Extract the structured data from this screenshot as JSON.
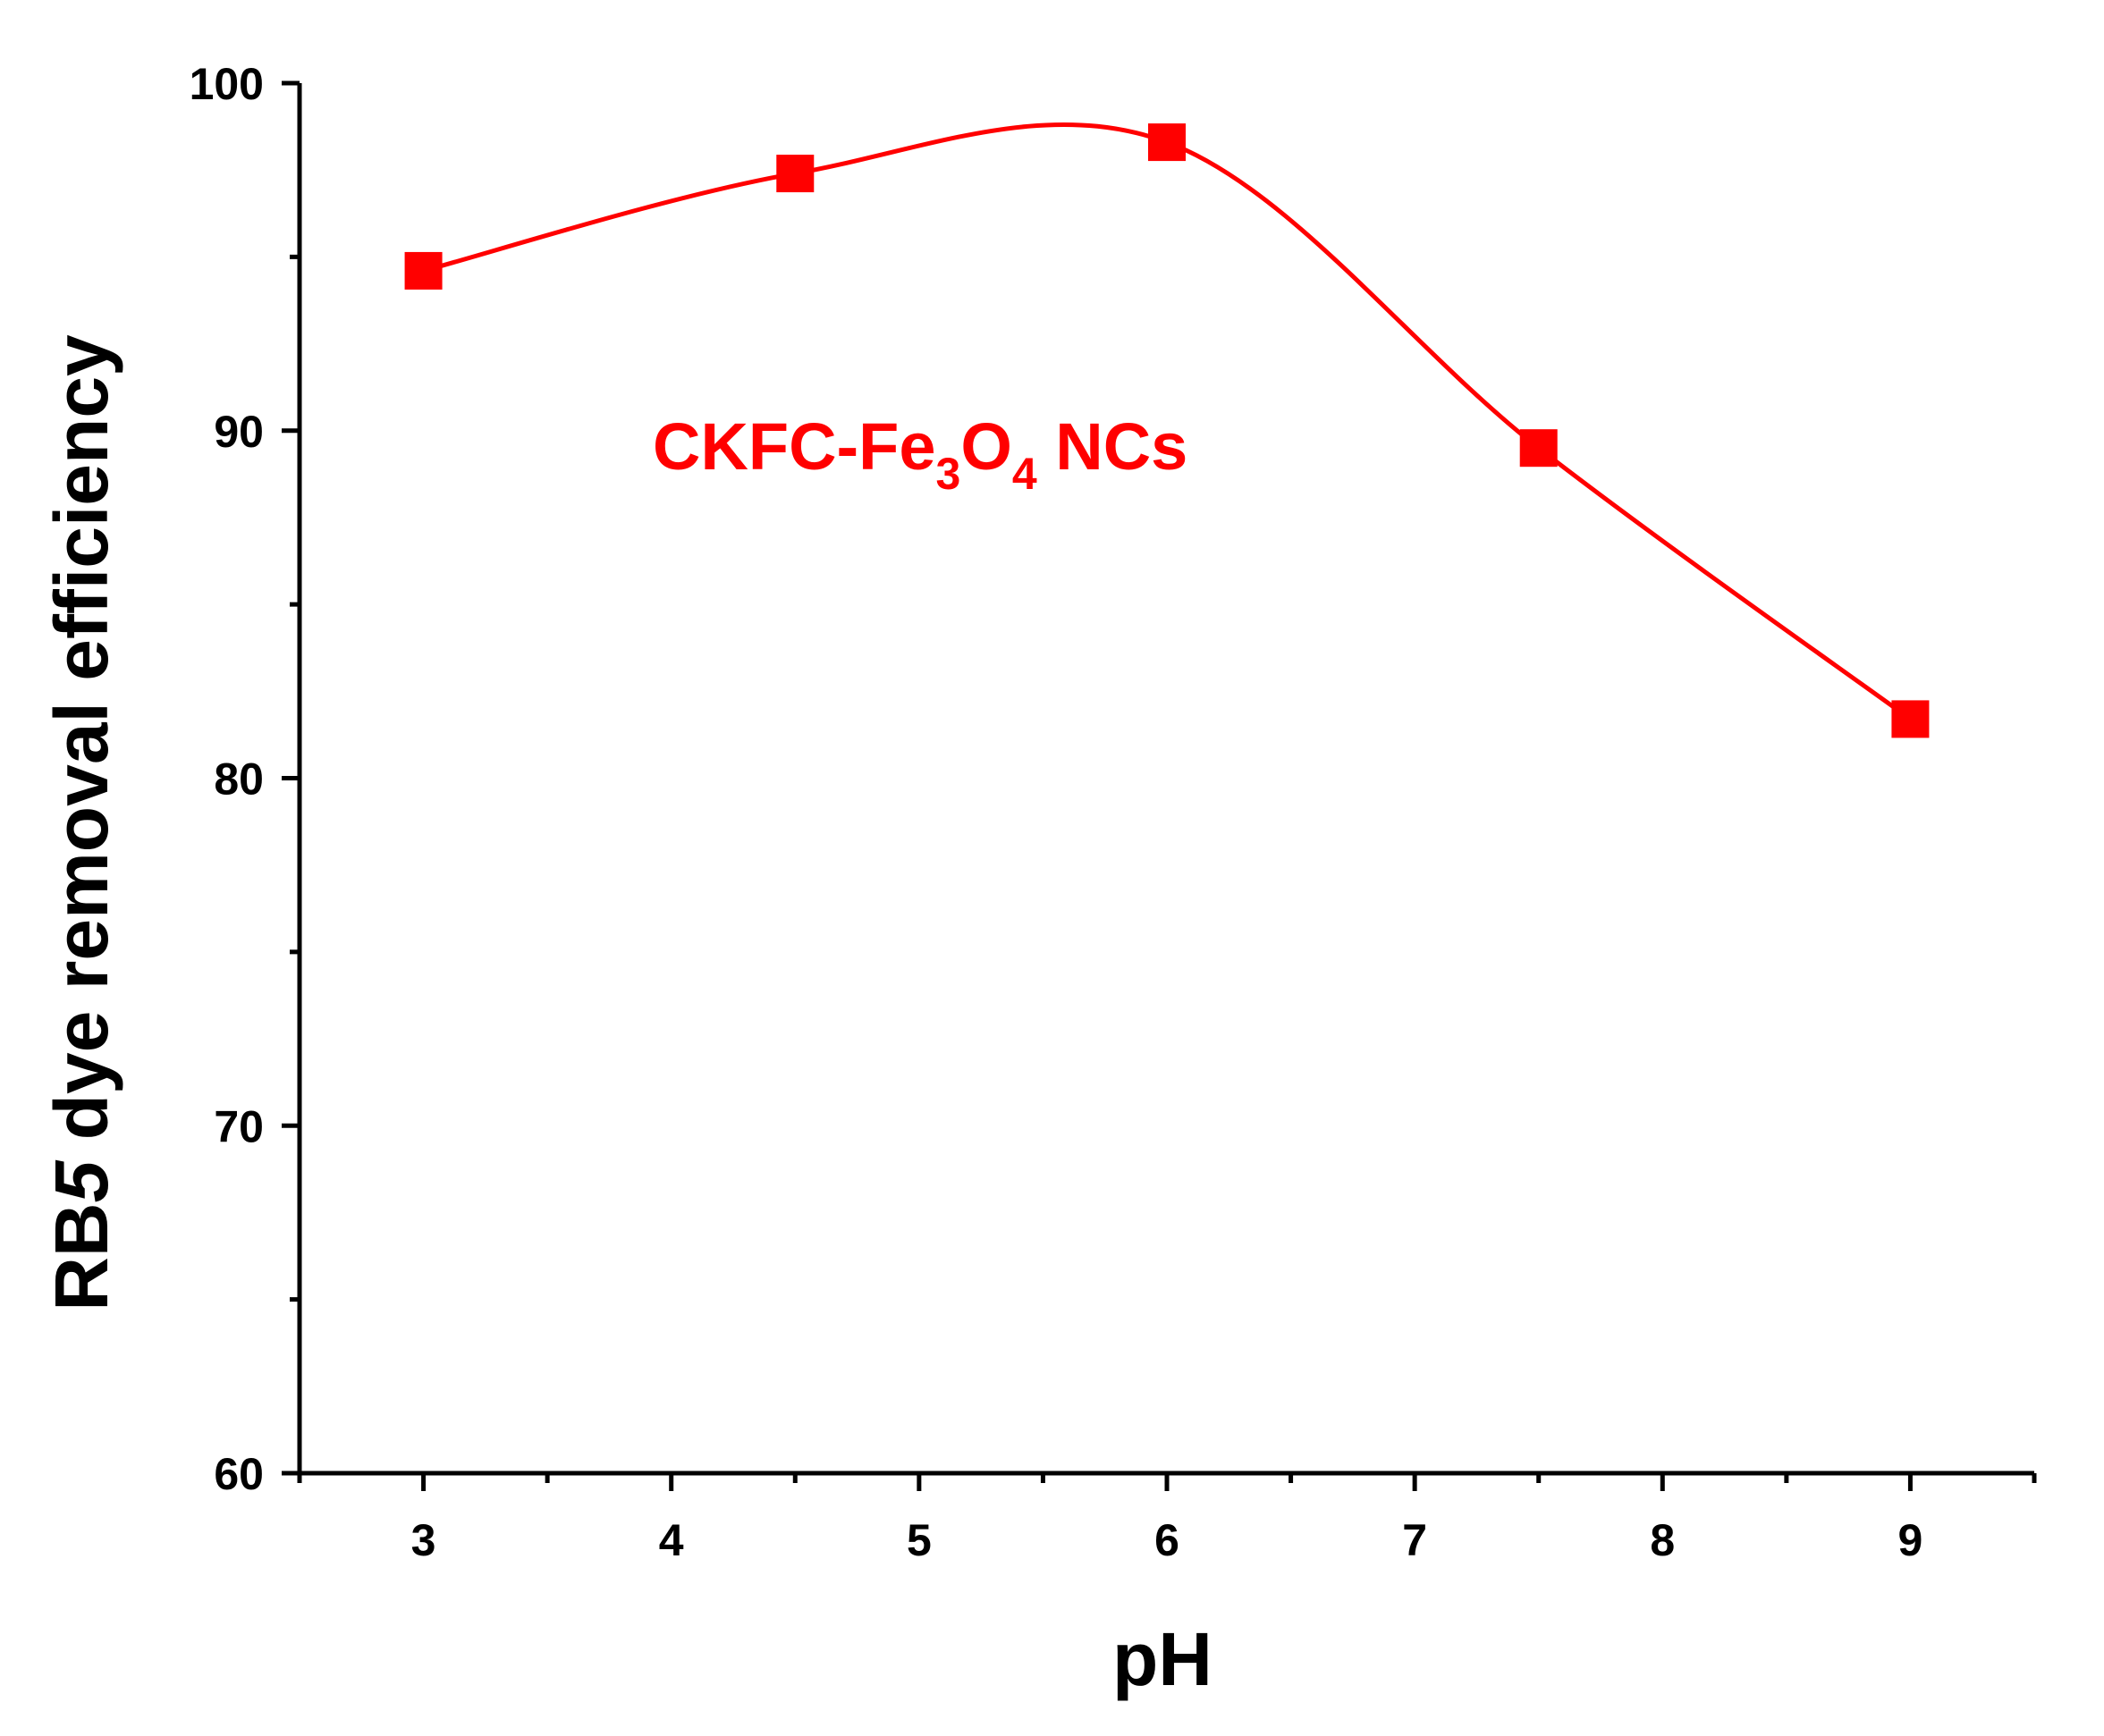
{
  "chart_data": {
    "type": "line",
    "xlabel": "pH",
    "ylabel_parts": [
      {
        "text": "RB",
        "italic": false
      },
      {
        "text": "5",
        "italic": true
      },
      {
        "text": " dye removal efficiency",
        "italic": false
      }
    ],
    "xlim": [
      2.5,
      9.5
    ],
    "ylim": [
      60,
      100
    ],
    "x_ticks": [
      3,
      4,
      5,
      6,
      7,
      8,
      9
    ],
    "x_minor_ticks": [
      2.5,
      3.5,
      4.5,
      5.5,
      6.5,
      7.5,
      8.5,
      9.5
    ],
    "y_ticks": [
      60,
      70,
      80,
      90,
      100
    ],
    "y_minor_ticks": [
      65,
      75,
      85,
      95
    ],
    "grid": false,
    "series": [
      {
        "color": "#ff0000",
        "marker": "square",
        "smooth": true,
        "x": [
          3,
          4.5,
          6,
          7.5,
          9
        ],
        "y": [
          94.6,
          97.4,
          98.3,
          89.5,
          81.7
        ]
      }
    ],
    "annotation": {
      "parts": [
        {
          "text": "CKFC-Fe",
          "sub": false
        },
        {
          "text": "3",
          "sub": true
        },
        {
          "text": "O",
          "sub": false
        },
        {
          "text": "4",
          "sub": true
        },
        {
          "text": " NCs",
          "sub": false
        }
      ],
      "color": "#ff0000"
    }
  }
}
